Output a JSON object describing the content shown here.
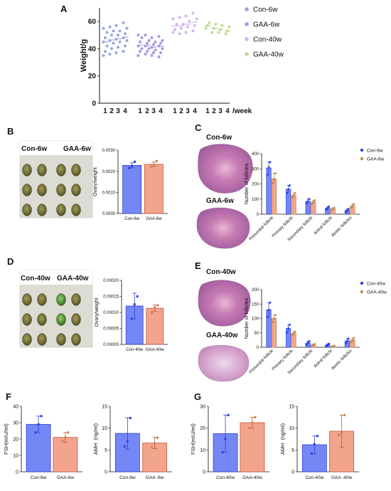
{
  "panels": {
    "a": "A",
    "b": "B",
    "c": "C",
    "d": "D",
    "e": "E",
    "f": "F",
    "g": "G"
  },
  "photo_labels": {
    "b": [
      "Con-6w",
      "GAA-6w"
    ],
    "c": [
      "Con-6w",
      "GAA-6w"
    ],
    "d": [
      "Con-40w",
      "GAA-40w"
    ],
    "e": [
      "Con-40w",
      "GAA-40w"
    ]
  },
  "colors": {
    "con6": "#9AA6E0",
    "gaa6": "#A898E4",
    "con40": "#D6B4F2",
    "gaa40": "#C2DC94",
    "blue": "#7487F5",
    "blue_edge": "#2F3FD0",
    "orange": "#F2A48C",
    "orange_edge": "#C8543A",
    "con_dark": "#2D3FE8",
    "gaa_dark": "#C08A52"
  },
  "chart_data": [
    {
      "id": "weight",
      "type": "scatter",
      "ylabel": "Weight/g",
      "xlabel": "/week",
      "ylim": [
        0,
        70
      ],
      "yticks": [
        0,
        20,
        40,
        60
      ],
      "categories": [
        "1",
        "2",
        "3",
        "4",
        "1",
        "2",
        "3",
        "4",
        "1",
        "2",
        "3",
        "4",
        "1",
        "2",
        "3",
        "4"
      ],
      "legend_position": "right",
      "series": [
        {
          "name": "Con-6w",
          "color_key": "con6",
          "slots": [
            0,
            1,
            2,
            3
          ],
          "points": [
            [
              35,
              38,
              42,
              45,
              48,
              52,
              55
            ],
            [
              36,
              40,
              44,
              46,
              50,
              53,
              56
            ],
            [
              37,
              41,
              45,
              47,
              50,
              53,
              57
            ],
            [
              38,
              42,
              46,
              48,
              51,
              55,
              59
            ]
          ]
        },
        {
          "name": "GAA-6w",
          "color_key": "gaa6",
          "slots": [
            4,
            5,
            6,
            7
          ],
          "points": [
            [
              35,
              38,
              40,
              42,
              45,
              48,
              50
            ],
            [
              36,
              38,
              40,
              42,
              44,
              46,
              50
            ],
            [
              35,
              37,
              39,
              41,
              43,
              45,
              48
            ],
            [
              34,
              37,
              40,
              42,
              44,
              46,
              49
            ]
          ]
        },
        {
          "name": "Con-40w",
          "color_key": "con40",
          "slots": [
            8,
            9,
            10,
            11
          ],
          "points": [
            [
              52,
              54,
              58,
              62
            ],
            [
              51,
              55,
              58,
              63
            ],
            [
              52,
              56,
              60,
              64
            ],
            [
              53,
              57,
              62,
              66
            ]
          ]
        },
        {
          "name": "GAA-40w",
          "color_key": "gaa40",
          "slots": [
            12,
            13,
            14,
            15
          ],
          "points": [
            [
              55,
              57,
              59
            ],
            [
              52,
              55,
              58
            ],
            [
              52,
              54,
              57
            ],
            [
              51,
              53,
              56
            ]
          ]
        }
      ]
    },
    {
      "id": "ovary6w",
      "type": "bar",
      "ylabel": "Ovary/weight",
      "categories": [
        "Con-6w",
        "GAA-6w"
      ],
      "yticks": [
        "0.0000",
        "0.0010",
        "0.0020",
        "0.0030"
      ],
      "ylim": [
        0,
        0.003
      ],
      "values": [
        0.00228,
        0.00233
      ],
      "errors": [
        0.00012,
        0.0001
      ],
      "points": [
        [
          0.00215,
          0.00225,
          0.00245
        ],
        [
          0.00222,
          0.0023,
          0.00248
        ]
      ]
    },
    {
      "id": "follicles6w",
      "type": "bar",
      "ylabel": "Number of follicles",
      "categories": [
        "Primordial follicle",
        "Primary follicle",
        "Secondary follicle",
        "Antral follicle",
        "Atretic follicles"
      ],
      "yticks": [
        0,
        100,
        200,
        300,
        400
      ],
      "ylim": [
        0,
        400
      ],
      "legend_position": "top-right",
      "series": [
        {
          "name": "Con-6w",
          "color_key": "con_dark",
          "values": [
            305,
            165,
            85,
            40,
            25
          ],
          "errors": [
            40,
            25,
            15,
            10,
            10
          ],
          "points": [
            [
              260,
              310,
              345
            ],
            [
              140,
              165,
              190
            ],
            [
              70,
              85,
              100
            ],
            [
              30,
              40,
              50
            ],
            [
              15,
              25,
              35
            ]
          ]
        },
        {
          "name": "GAA-6w",
          "color_key": "gaa_dark",
          "values": [
            235,
            125,
            80,
            35,
            55
          ],
          "errors": [
            35,
            15,
            12,
            8,
            12
          ],
          "points": [
            [
              205,
              230,
              270
            ],
            [
              110,
              125,
              140
            ],
            [
              68,
              80,
              92
            ],
            [
              28,
              35,
              42
            ],
            [
              43,
              55,
              67
            ]
          ]
        }
      ]
    },
    {
      "id": "ovary40w",
      "type": "bar",
      "ylabel": "Ovary/weight",
      "categories": [
        "Con-40w",
        "GAA-40w"
      ],
      "yticks": [
        "0.00000",
        "0.00005",
        "0.00010",
        "0.00015",
        "0.00020"
      ],
      "ylim": [
        0,
        0.0002
      ],
      "values": [
        0.00012,
        0.000113
      ],
      "errors": [
        4e-05,
        1e-05
      ],
      "points": [
        [
          8e-05,
          0.000125,
          0.00015
        ],
        [
          0.0001,
          0.000115,
          0.000122
        ]
      ]
    },
    {
      "id": "follicles40w",
      "type": "bar",
      "ylabel": "Number of follicles",
      "categories": [
        "Primordial follicle",
        "Primary follicle",
        "Secondary follicle",
        "Antral follicle",
        "Atretic follicles"
      ],
      "yticks": [
        0,
        50,
        100,
        150,
        200
      ],
      "ylim": [
        0,
        200
      ],
      "legend_position": "top-right",
      "series": [
        {
          "name": "Con-40w",
          "color_key": "con_dark",
          "values": [
            130,
            65,
            15,
            8,
            22
          ],
          "errors": [
            25,
            12,
            6,
            4,
            8
          ],
          "points": [
            [
              105,
              130,
              155
            ],
            [
              52,
              65,
              78
            ],
            [
              9,
              15,
              21
            ],
            [
              4,
              8,
              12
            ],
            [
              14,
              22,
              30
            ]
          ]
        },
        {
          "name": "GAA-40w",
          "color_key": "gaa_dark",
          "values": [
            100,
            48,
            8,
            3,
            25
          ],
          "errors": [
            12,
            6,
            3,
            2,
            7
          ],
          "points": [
            [
              88,
              100,
              112
            ],
            [
              42,
              48,
              54
            ],
            [
              5,
              8,
              11
            ],
            [
              1,
              3,
              5
            ],
            [
              18,
              25,
              32
            ]
          ]
        }
      ]
    },
    {
      "id": "fsh6w",
      "type": "bar",
      "ylabel": "FSH(mIU/ml)",
      "categories": [
        "Con-6w",
        "GAA-6w"
      ],
      "yticks": [
        0,
        10,
        20,
        30,
        40
      ],
      "ylim": [
        0,
        40
      ],
      "values": [
        29,
        21
      ],
      "errors": [
        5,
        3
      ],
      "points": [
        [
          24,
          29,
          34
        ],
        [
          19,
          21,
          24
        ]
      ]
    },
    {
      "id": "amh6w",
      "type": "bar",
      "ylabel": "AMH  (ng/ml)",
      "categories": [
        "Con-6w",
        "GAA -6w"
      ],
      "yticks": [
        0,
        5,
        10,
        15
      ],
      "ylim": [
        0,
        15
      ],
      "values": [
        8.8,
        6.6
      ],
      "errors": [
        3.6,
        1.3
      ],
      "points": [
        [
          5.8,
          7.0,
          12.3
        ],
        [
          5.6,
          6.5,
          7.8
        ]
      ]
    },
    {
      "id": "fsh40w",
      "type": "bar",
      "ylabel": "FSH(mIU/ml)",
      "categories": [
        "Con-40w",
        "GAA-40w"
      ],
      "yticks": [
        0,
        10,
        20,
        30
      ],
      "ylim": [
        0,
        30
      ],
      "values": [
        17.5,
        22.5
      ],
      "errors": [
        8.5,
        2.5
      ],
      "points": [
        [
          9,
          15,
          26
        ],
        [
          20,
          22.5,
          25
        ]
      ]
    },
    {
      "id": "amh40w",
      "type": "bar",
      "ylabel": "AMH  (ng/ml)",
      "categories": [
        "Con-40w",
        "GAA -40w"
      ],
      "yticks": [
        0,
        5,
        10,
        15
      ],
      "ylim": [
        0,
        15
      ],
      "values": [
        6.2,
        9.3
      ],
      "errors": [
        2.0,
        3.7
      ],
      "points": [
        [
          4.2,
          6.3,
          8.2
        ],
        [
          8.4,
          8.9,
          13.0
        ]
      ]
    }
  ]
}
